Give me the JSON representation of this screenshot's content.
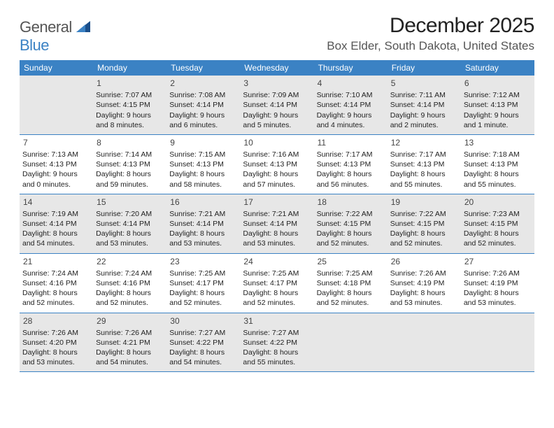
{
  "logo": {
    "general": "General",
    "blue": "Blue"
  },
  "title": "December 2025",
  "location": "Box Elder, South Dakota, United States",
  "colors": {
    "header_bg": "#3b82c4",
    "header_text": "#ffffff",
    "shade_bg": "#e7e7e7",
    "border": "#3b82c4",
    "text": "#222222"
  },
  "weekdays": [
    "Sunday",
    "Monday",
    "Tuesday",
    "Wednesday",
    "Thursday",
    "Friday",
    "Saturday"
  ],
  "weeks": [
    [
      {
        "blank": true
      },
      {
        "day": 1,
        "sunrise": "Sunrise: 7:07 AM",
        "sunset": "Sunset: 4:15 PM",
        "daylight": "Daylight: 9 hours and 8 minutes."
      },
      {
        "day": 2,
        "sunrise": "Sunrise: 7:08 AM",
        "sunset": "Sunset: 4:14 PM",
        "daylight": "Daylight: 9 hours and 6 minutes."
      },
      {
        "day": 3,
        "sunrise": "Sunrise: 7:09 AM",
        "sunset": "Sunset: 4:14 PM",
        "daylight": "Daylight: 9 hours and 5 minutes."
      },
      {
        "day": 4,
        "sunrise": "Sunrise: 7:10 AM",
        "sunset": "Sunset: 4:14 PM",
        "daylight": "Daylight: 9 hours and 4 minutes."
      },
      {
        "day": 5,
        "sunrise": "Sunrise: 7:11 AM",
        "sunset": "Sunset: 4:14 PM",
        "daylight": "Daylight: 9 hours and 2 minutes."
      },
      {
        "day": 6,
        "sunrise": "Sunrise: 7:12 AM",
        "sunset": "Sunset: 4:13 PM",
        "daylight": "Daylight: 9 hours and 1 minute."
      }
    ],
    [
      {
        "day": 7,
        "sunrise": "Sunrise: 7:13 AM",
        "sunset": "Sunset: 4:13 PM",
        "daylight": "Daylight: 9 hours and 0 minutes."
      },
      {
        "day": 8,
        "sunrise": "Sunrise: 7:14 AM",
        "sunset": "Sunset: 4:13 PM",
        "daylight": "Daylight: 8 hours and 59 minutes."
      },
      {
        "day": 9,
        "sunrise": "Sunrise: 7:15 AM",
        "sunset": "Sunset: 4:13 PM",
        "daylight": "Daylight: 8 hours and 58 minutes."
      },
      {
        "day": 10,
        "sunrise": "Sunrise: 7:16 AM",
        "sunset": "Sunset: 4:13 PM",
        "daylight": "Daylight: 8 hours and 57 minutes."
      },
      {
        "day": 11,
        "sunrise": "Sunrise: 7:17 AM",
        "sunset": "Sunset: 4:13 PM",
        "daylight": "Daylight: 8 hours and 56 minutes."
      },
      {
        "day": 12,
        "sunrise": "Sunrise: 7:17 AM",
        "sunset": "Sunset: 4:13 PM",
        "daylight": "Daylight: 8 hours and 55 minutes."
      },
      {
        "day": 13,
        "sunrise": "Sunrise: 7:18 AM",
        "sunset": "Sunset: 4:13 PM",
        "daylight": "Daylight: 8 hours and 55 minutes."
      }
    ],
    [
      {
        "day": 14,
        "sunrise": "Sunrise: 7:19 AM",
        "sunset": "Sunset: 4:14 PM",
        "daylight": "Daylight: 8 hours and 54 minutes."
      },
      {
        "day": 15,
        "sunrise": "Sunrise: 7:20 AM",
        "sunset": "Sunset: 4:14 PM",
        "daylight": "Daylight: 8 hours and 53 minutes."
      },
      {
        "day": 16,
        "sunrise": "Sunrise: 7:21 AM",
        "sunset": "Sunset: 4:14 PM",
        "daylight": "Daylight: 8 hours and 53 minutes."
      },
      {
        "day": 17,
        "sunrise": "Sunrise: 7:21 AM",
        "sunset": "Sunset: 4:14 PM",
        "daylight": "Daylight: 8 hours and 53 minutes."
      },
      {
        "day": 18,
        "sunrise": "Sunrise: 7:22 AM",
        "sunset": "Sunset: 4:15 PM",
        "daylight": "Daylight: 8 hours and 52 minutes."
      },
      {
        "day": 19,
        "sunrise": "Sunrise: 7:22 AM",
        "sunset": "Sunset: 4:15 PM",
        "daylight": "Daylight: 8 hours and 52 minutes."
      },
      {
        "day": 20,
        "sunrise": "Sunrise: 7:23 AM",
        "sunset": "Sunset: 4:15 PM",
        "daylight": "Daylight: 8 hours and 52 minutes."
      }
    ],
    [
      {
        "day": 21,
        "sunrise": "Sunrise: 7:24 AM",
        "sunset": "Sunset: 4:16 PM",
        "daylight": "Daylight: 8 hours and 52 minutes."
      },
      {
        "day": 22,
        "sunrise": "Sunrise: 7:24 AM",
        "sunset": "Sunset: 4:16 PM",
        "daylight": "Daylight: 8 hours and 52 minutes."
      },
      {
        "day": 23,
        "sunrise": "Sunrise: 7:25 AM",
        "sunset": "Sunset: 4:17 PM",
        "daylight": "Daylight: 8 hours and 52 minutes."
      },
      {
        "day": 24,
        "sunrise": "Sunrise: 7:25 AM",
        "sunset": "Sunset: 4:17 PM",
        "daylight": "Daylight: 8 hours and 52 minutes."
      },
      {
        "day": 25,
        "sunrise": "Sunrise: 7:25 AM",
        "sunset": "Sunset: 4:18 PM",
        "daylight": "Daylight: 8 hours and 52 minutes."
      },
      {
        "day": 26,
        "sunrise": "Sunrise: 7:26 AM",
        "sunset": "Sunset: 4:19 PM",
        "daylight": "Daylight: 8 hours and 53 minutes."
      },
      {
        "day": 27,
        "sunrise": "Sunrise: 7:26 AM",
        "sunset": "Sunset: 4:19 PM",
        "daylight": "Daylight: 8 hours and 53 minutes."
      }
    ],
    [
      {
        "day": 28,
        "sunrise": "Sunrise: 7:26 AM",
        "sunset": "Sunset: 4:20 PM",
        "daylight": "Daylight: 8 hours and 53 minutes."
      },
      {
        "day": 29,
        "sunrise": "Sunrise: 7:26 AM",
        "sunset": "Sunset: 4:21 PM",
        "daylight": "Daylight: 8 hours and 54 minutes."
      },
      {
        "day": 30,
        "sunrise": "Sunrise: 7:27 AM",
        "sunset": "Sunset: 4:22 PM",
        "daylight": "Daylight: 8 hours and 54 minutes."
      },
      {
        "day": 31,
        "sunrise": "Sunrise: 7:27 AM",
        "sunset": "Sunset: 4:22 PM",
        "daylight": "Daylight: 8 hours and 55 minutes."
      },
      {
        "blank": true
      },
      {
        "blank": true
      },
      {
        "blank": true
      }
    ]
  ]
}
